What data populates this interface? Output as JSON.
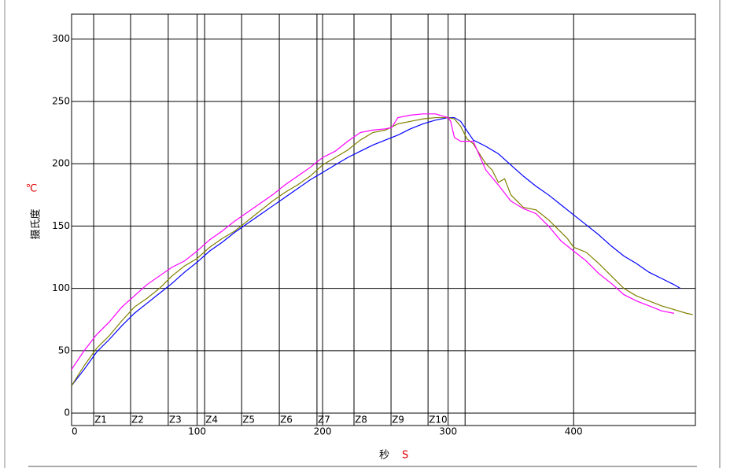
{
  "chart_data": {
    "type": "line",
    "ylabel": "摄氏度",
    "yunit": "℃",
    "xlabel": "秒",
    "xunit": "S",
    "xlim": [
      0,
      497
    ],
    "ylim": [
      -10,
      320
    ],
    "xticks": [
      0,
      100,
      200,
      300,
      400
    ],
    "yticks": [
      0,
      50,
      100,
      150,
      200,
      250,
      300
    ],
    "grid": true,
    "zone_labels": [
      "Z1",
      "Z2",
      "Z3",
      "Z4",
      "Z5",
      "Z6",
      "Z7",
      "Z8",
      "Z9",
      "Z10"
    ],
    "zone_bounds": [
      17.6,
      47,
      77,
      106,
      135.5,
      165.5,
      195.5,
      225,
      254.5,
      284,
      313.5
    ],
    "series": [
      {
        "color": "#0000ff",
        "x": [
          0,
          10,
          20,
          30,
          40,
          50,
          60,
          70,
          80,
          90,
          100,
          110,
          120,
          130,
          140,
          150,
          160,
          170,
          180,
          190,
          200,
          210,
          220,
          230,
          240,
          250,
          260,
          270,
          280,
          290,
          300,
          305,
          310,
          320,
          330,
          340,
          350,
          360,
          370,
          380,
          390,
          400,
          410,
          420,
          430,
          440,
          450,
          460,
          470,
          480,
          485
        ],
        "values": [
          22,
          35,
          49,
          59,
          70,
          80,
          88,
          96,
          104,
          113,
          121,
          130,
          137,
          145,
          152,
          159,
          166,
          173,
          180,
          187,
          193,
          199,
          205,
          210,
          215,
          219,
          223,
          228,
          232,
          235,
          237,
          237,
          234,
          219,
          214,
          208,
          199,
          190,
          182,
          175,
          167,
          159,
          151,
          143,
          134,
          126,
          120,
          113,
          108,
          103,
          100
        ]
      },
      {
        "color": "#808000",
        "x": [
          0,
          10,
          20,
          30,
          40,
          50,
          60,
          70,
          80,
          90,
          100,
          110,
          120,
          130,
          140,
          150,
          160,
          170,
          180,
          190,
          200,
          210,
          220,
          230,
          240,
          250,
          260,
          270,
          280,
          290,
          300,
          305,
          310,
          315,
          320,
          330,
          335,
          340,
          345,
          350,
          360,
          370,
          380,
          390,
          395,
          400,
          410,
          420,
          430,
          440,
          450,
          460,
          470,
          480,
          490,
          495
        ],
        "values": [
          22,
          38,
          52,
          62,
          74,
          85,
          92,
          100,
          110,
          118,
          124,
          133,
          140,
          146,
          154,
          162,
          170,
          177,
          183,
          190,
          199,
          205,
          211,
          219,
          225,
          227,
          232,
          234,
          236,
          237,
          237,
          236,
          230,
          220,
          216,
          200,
          195,
          185,
          188,
          175,
          165,
          163,
          155,
          145,
          140,
          133,
          129,
          120,
          110,
          100,
          94,
          90,
          86,
          83,
          80,
          79
        ]
      },
      {
        "color": "#ff00ff",
        "x": [
          0,
          10,
          20,
          30,
          40,
          50,
          60,
          70,
          80,
          90,
          100,
          110,
          120,
          130,
          140,
          150,
          160,
          170,
          180,
          190,
          200,
          210,
          220,
          230,
          240,
          250,
          255,
          260,
          270,
          280,
          290,
          300,
          302,
          305,
          310,
          320,
          330,
          340,
          350,
          360,
          370,
          380,
          390,
          400,
          410,
          420,
          430,
          440,
          450,
          460,
          470,
          480
        ],
        "values": [
          35,
          50,
          63,
          73,
          85,
          94,
          103,
          110,
          117,
          122,
          130,
          139,
          146,
          154,
          161,
          168,
          175,
          183,
          190,
          197,
          205,
          210,
          218,
          225,
          227,
          228,
          229,
          237,
          239,
          240,
          240,
          237,
          234,
          221,
          218,
          218,
          195,
          183,
          170,
          164,
          160,
          150,
          138,
          130,
          122,
          112,
          104,
          95,
          90,
          86,
          82,
          80
        ]
      }
    ]
  }
}
